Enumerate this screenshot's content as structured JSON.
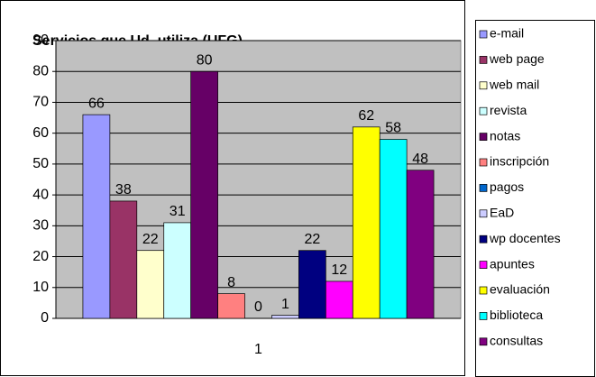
{
  "chart_data": {
    "type": "bar",
    "title": "Servicios que Ud. utiliza (UFG)",
    "categories": [
      "1"
    ],
    "series": [
      {
        "name": "e-mail",
        "color": "#9999ff",
        "values": [
          66
        ]
      },
      {
        "name": "web page",
        "color": "#993366",
        "values": [
          38
        ]
      },
      {
        "name": "web mail",
        "color": "#ffffcc",
        "values": [
          22
        ]
      },
      {
        "name": "revista",
        "color": "#ccffff",
        "values": [
          31
        ]
      },
      {
        "name": "notas",
        "color": "#660066",
        "values": [
          80
        ]
      },
      {
        "name": "inscripción",
        "color": "#ff8080",
        "values": [
          8
        ]
      },
      {
        "name": "pagos",
        "color": "#0066cc",
        "values": [
          0
        ]
      },
      {
        "name": "EaD",
        "color": "#ccccff",
        "values": [
          1
        ]
      },
      {
        "name": "wp docentes",
        "color": "#000080",
        "values": [
          22
        ]
      },
      {
        "name": "apuntes",
        "color": "#ff00ff",
        "values": [
          12
        ]
      },
      {
        "name": "evaluación",
        "color": "#ffff00",
        "values": [
          62
        ]
      },
      {
        "name": "biblioteca",
        "color": "#00ffff",
        "values": [
          58
        ]
      },
      {
        "name": "consultas",
        "color": "#800080",
        "values": [
          48
        ]
      }
    ],
    "ylim": [
      0,
      90
    ],
    "yticks": [
      0,
      10,
      20,
      30,
      40,
      50,
      60,
      70,
      80,
      90
    ],
    "grid": true,
    "legend": "right"
  }
}
